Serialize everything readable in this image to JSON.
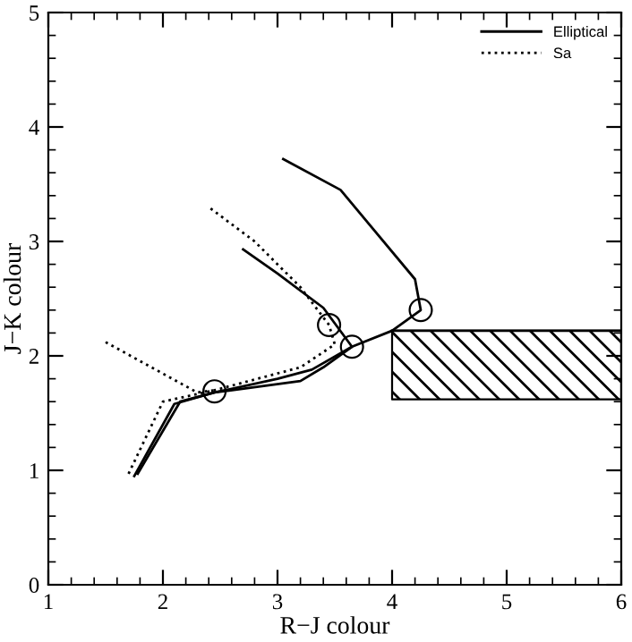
{
  "chart_data": {
    "type": "line",
    "xlabel": "R−J colour",
    "ylabel": "J−K colour",
    "xlim": [
      1,
      6
    ],
    "ylim": [
      0,
      5
    ],
    "xticks": [
      1,
      2,
      3,
      4,
      5,
      6
    ],
    "yticks": [
      0,
      1,
      2,
      3,
      4,
      5
    ],
    "grid": false,
    "legend": "top right",
    "series": [
      {
        "name": "Elliptical",
        "color": "#000000",
        "line_style": "solid",
        "x": [
          1.75,
          2.1,
          2.45,
          3.0,
          3.3,
          3.65,
          4.0,
          4.25,
          4.2,
          3.55,
          3.05
        ],
        "values": [
          0.95,
          1.58,
          1.68,
          1.8,
          1.88,
          2.08,
          2.22,
          2.4,
          2.67,
          3.45,
          3.72
        ]
      },
      {
        "color": "#000000",
        "line_style": "solid",
        "x": [
          1.78,
          2.15,
          2.45,
          3.2,
          3.4,
          3.65,
          3.4,
          3.0,
          2.7
        ],
        "values": [
          0.97,
          1.6,
          1.68,
          1.78,
          1.9,
          2.08,
          2.42,
          2.72,
          2.93
        ]
      },
      {
        "name": "Sa",
        "color": "#000000",
        "line_style": "dotted",
        "x": [
          1.7,
          2.0,
          2.45,
          3.2,
          3.5,
          3.45,
          3.2,
          2.8,
          2.4
        ],
        "values": [
          0.97,
          1.6,
          1.7,
          1.9,
          2.1,
          2.27,
          2.6,
          3.0,
          3.3
        ]
      },
      {
        "color": "#000000",
        "line_style": "dotted",
        "x": [
          1.5,
          2.3,
          2.45
        ],
        "values": [
          2.12,
          1.68,
          1.7
        ]
      },
      {
        "type": "scatter",
        "marker": "circle",
        "color": "#000000",
        "x": [
          2.45,
          3.45,
          3.65,
          4.25
        ],
        "values": [
          1.69,
          2.27,
          2.08,
          2.4
        ]
      },
      {
        "type": "line",
        "color": "#000000",
        "line_style": "solid",
        "x": [
          4,
          6
        ],
        "values": [
          2.22,
          2.22
        ],
        "lower": [
          1.62,
          1.62
        ],
        "upper": [
          2.22,
          2.22
        ]
      }
    ]
  }
}
